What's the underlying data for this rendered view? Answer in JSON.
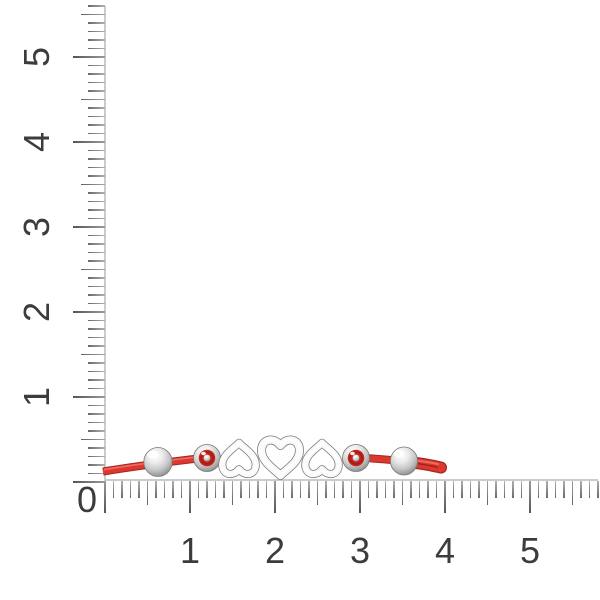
{
  "page": {
    "background": "#ffffff"
  },
  "rulers": {
    "horizontal": {
      "origin_label": "0",
      "labels": [
        "1",
        "2",
        "3",
        "4",
        "5"
      ],
      "subdivisions_per_unit": 10,
      "max_units": 5.8
    },
    "vertical": {
      "labels": [
        "1",
        "2",
        "3",
        "4",
        "5"
      ],
      "subdivisions_per_unit": 10,
      "max_units": 5.6
    },
    "colors": {
      "baseline": "#cccccc",
      "tick": "#8e8e8e",
      "label": "#3c3c3c"
    }
  },
  "bracelet": {
    "subject": "red-cord-bracelet-with-heart-charms",
    "charms": [
      "heart-inverted",
      "heart-upright",
      "heart-inverted"
    ],
    "colors": {
      "cord_red": "#dc382f",
      "cord_shadow": "#a82420",
      "cord_highlight": "#f07468",
      "silver_light": "#ffffff",
      "silver_mid": "#c6c6c6",
      "silver_dark": "#6f6f6f"
    }
  }
}
